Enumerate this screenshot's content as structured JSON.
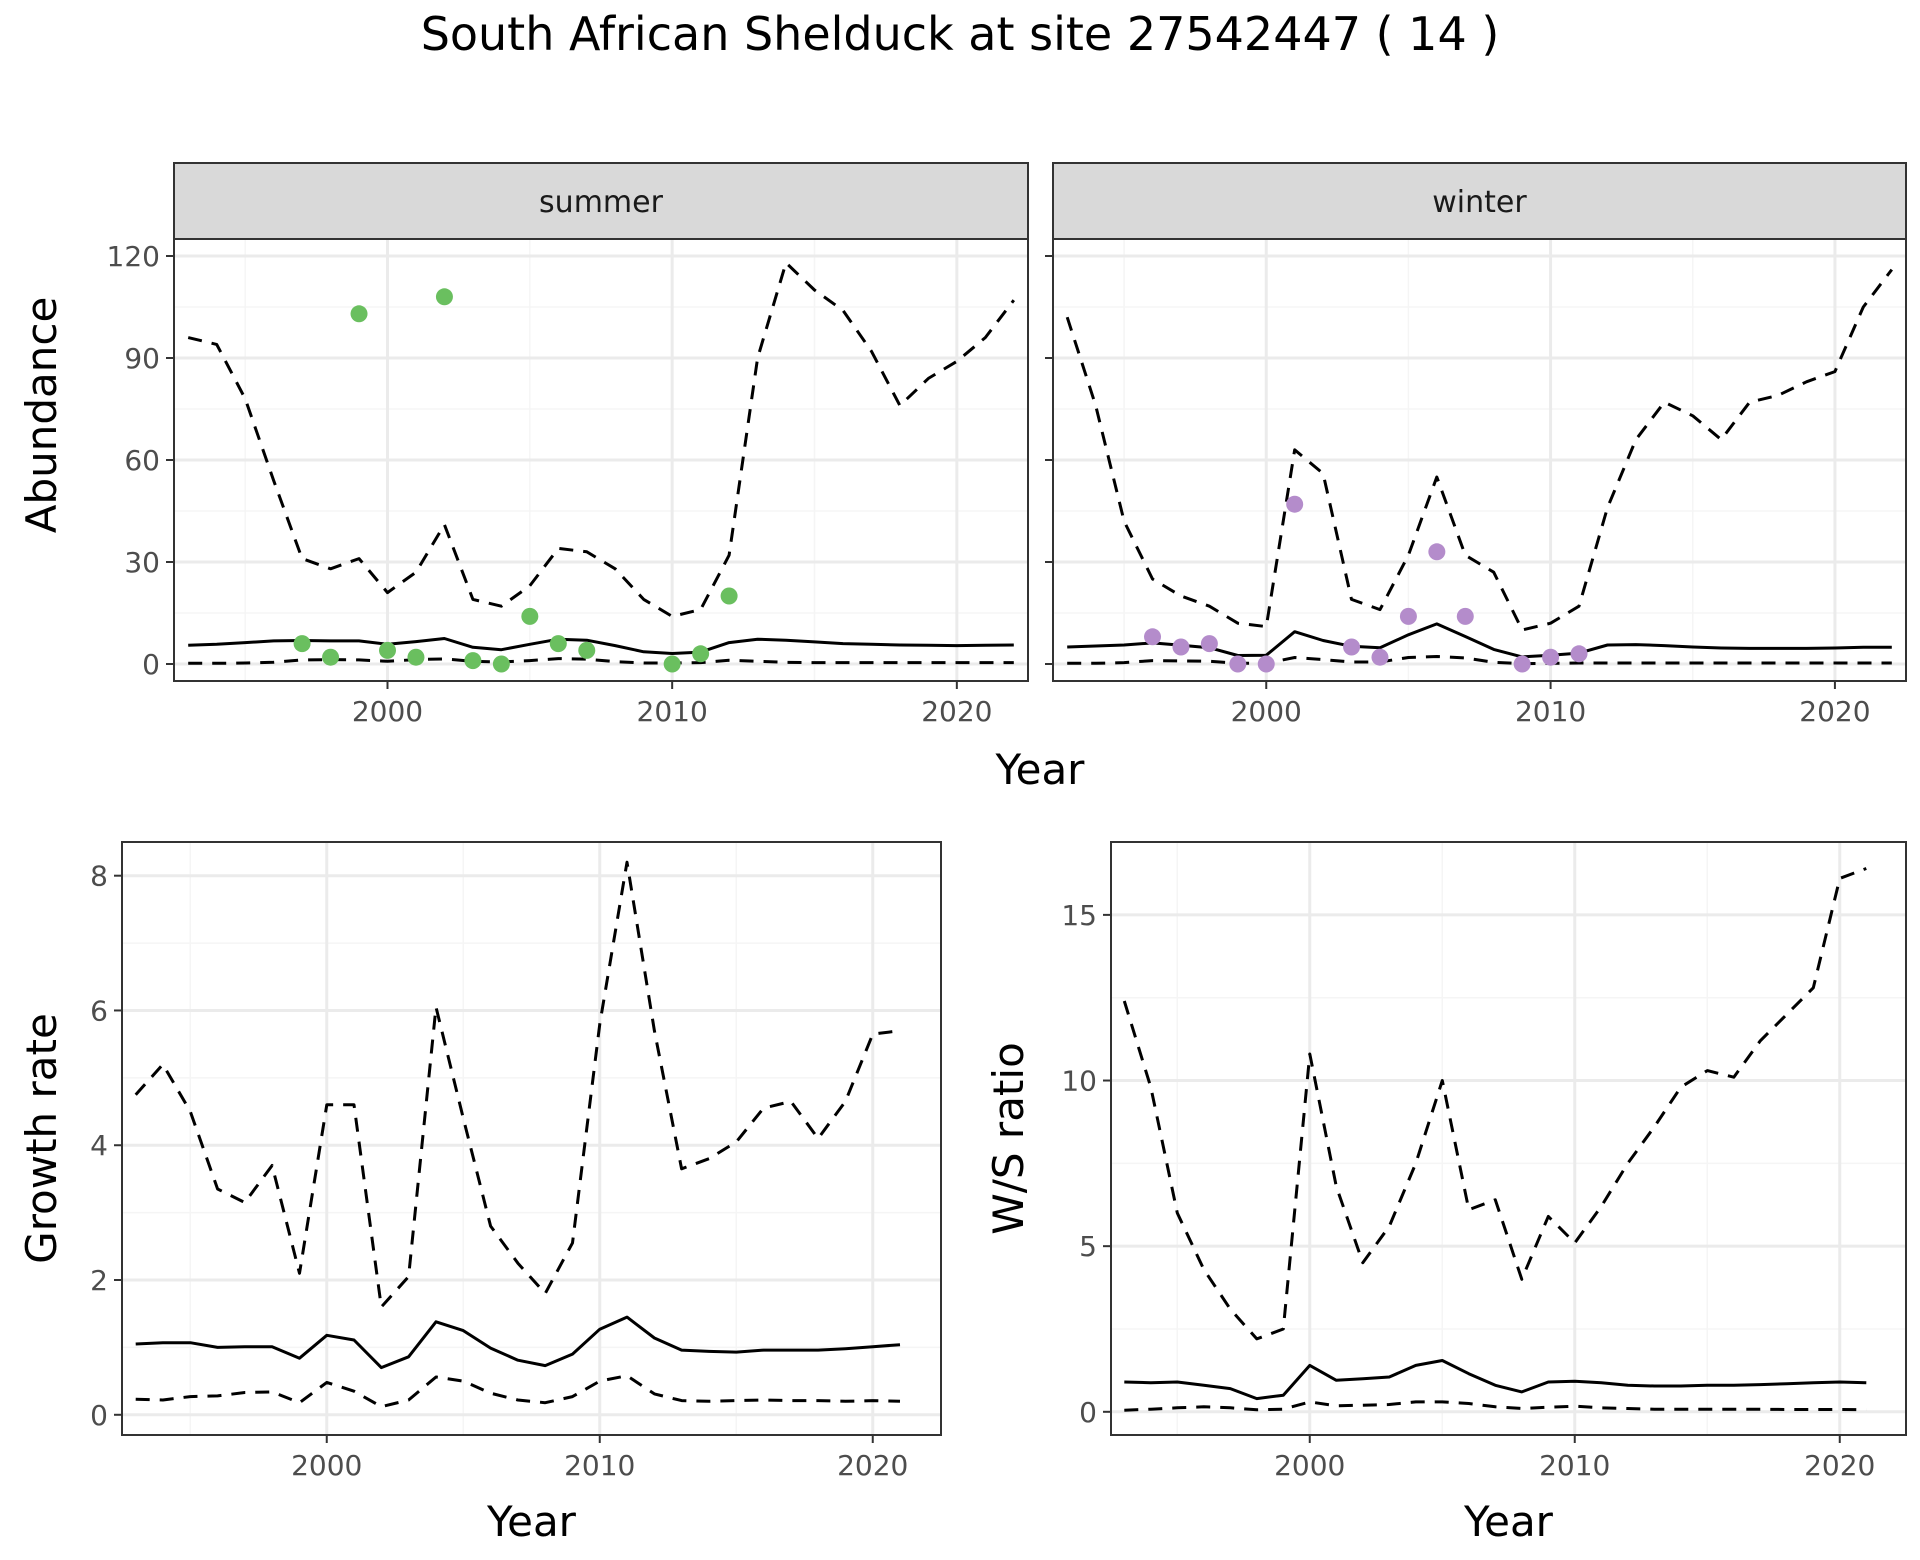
{
  "title": "South African Shelduck at site 27542447 ( 14 )",
  "colors": {
    "summer_points": "#6abf5f",
    "winter_points": "#b48ccb",
    "lines": "#000000",
    "grid_major": "#ebebeb",
    "grid_minor": "#f5f5f5",
    "strip_fill": "#d9d9d9",
    "panel_border": "#333333"
  },
  "chart_data": [
    {
      "type": "scatter",
      "facet": "summer",
      "xlabel": "Year",
      "ylabel": "Abundance",
      "xlim": [
        1992.5,
        2022.5
      ],
      "ylim": [
        -5,
        125
      ],
      "xticks": [
        2000,
        2010,
        2020
      ],
      "yticks": [
        0,
        30,
        60,
        90,
        120
      ],
      "grid": true,
      "points": {
        "x": [
          1997,
          1998,
          1999,
          2000,
          2001,
          2002,
          2003,
          2004,
          2005,
          2006,
          2007,
          2010,
          2011,
          2012
        ],
        "y": [
          6,
          2,
          103,
          4,
          2,
          108,
          1,
          0,
          14,
          6,
          4,
          0,
          3,
          20
        ]
      },
      "lines": [
        {
          "style": "solid",
          "x": [
            1993,
            1994,
            1995,
            1996,
            1997,
            1998,
            1999,
            2000,
            2001,
            2002,
            2003,
            2004,
            2005,
            2006,
            2007,
            2008,
            2009,
            2010,
            2011,
            2012,
            2013,
            2014,
            2015,
            2016,
            2017,
            2018,
            2019,
            2020,
            2021,
            2022
          ],
          "y": [
            5.5,
            5.8,
            6.3,
            6.8,
            6.9,
            6.8,
            6.8,
            5.8,
            6.6,
            7.5,
            4.9,
            4.2,
            5.8,
            7.3,
            7.0,
            5.4,
            3.6,
            3.1,
            3.5,
            6.3,
            7.3,
            7.0,
            6.5,
            6.0,
            5.8,
            5.6,
            5.5,
            5.4,
            5.5,
            5.6
          ]
        },
        {
          "style": "dashed",
          "x": [
            1993,
            1994,
            1995,
            1996,
            1997,
            1998,
            1999,
            2000,
            2001,
            2002,
            2003,
            2004,
            2005,
            2006,
            2007,
            2008,
            2009,
            2010,
            2011,
            2012,
            2013,
            2014,
            2015,
            2016,
            2017,
            2018,
            2019,
            2020,
            2021,
            2022
          ],
          "y": [
            96,
            94,
            78,
            54,
            31,
            28,
            31,
            21,
            27,
            41,
            19,
            17,
            23,
            34,
            33,
            28,
            19,
            14,
            16,
            32,
            90,
            118,
            110,
            104,
            92,
            76,
            84,
            89,
            96,
            107
          ]
        },
        {
          "style": "dashed",
          "x": [
            1993,
            1994,
            1995,
            1996,
            1997,
            1998,
            1999,
            2000,
            2001,
            2002,
            2003,
            2004,
            2005,
            2006,
            2007,
            2008,
            2009,
            2010,
            2011,
            2012,
            2013,
            2014,
            2015,
            2016,
            2017,
            2018,
            2019,
            2020,
            2021,
            2022
          ],
          "y": [
            0.2,
            0.2,
            0.3,
            0.5,
            1.2,
            1.3,
            1.2,
            0.8,
            1.3,
            1.5,
            0.8,
            0.6,
            1.0,
            1.6,
            1.4,
            0.7,
            0.3,
            0.3,
            0.4,
            1.1,
            0.8,
            0.5,
            0.4,
            0.4,
            0.4,
            0.4,
            0.4,
            0.4,
            0.4,
            0.4
          ]
        }
      ]
    },
    {
      "type": "scatter",
      "facet": "winter",
      "xlabel": "Year",
      "ylabel": "Abundance",
      "xlim": [
        1992.5,
        2022.5
      ],
      "ylim": [
        -5,
        125
      ],
      "xticks": [
        2000,
        2010,
        2020
      ],
      "yticks": [
        0,
        30,
        60,
        90,
        120
      ],
      "grid": true,
      "points": {
        "x": [
          1996,
          1997,
          1998,
          1999,
          2000,
          2001,
          2003,
          2004,
          2005,
          2006,
          2007,
          2009,
          2010,
          2011
        ],
        "y": [
          8,
          5,
          6,
          0,
          0,
          47,
          5,
          2,
          14,
          33,
          14,
          0,
          2,
          3
        ]
      },
      "lines": [
        {
          "style": "solid",
          "x": [
            1993,
            1994,
            1995,
            1996,
            1997,
            1998,
            1999,
            2000,
            2001,
            2002,
            2003,
            2004,
            2005,
            2006,
            2007,
            2008,
            2009,
            2010,
            2011,
            2012,
            2013,
            2014,
            2015,
            2016,
            2017,
            2018,
            2019,
            2020,
            2021,
            2022
          ],
          "y": [
            5.0,
            5.3,
            5.6,
            6.2,
            5.5,
            4.8,
            2.5,
            2.6,
            9.5,
            6.9,
            5.2,
            4.8,
            8.6,
            11.8,
            8.1,
            4.3,
            2.1,
            2.6,
            3.2,
            5.6,
            5.7,
            5.4,
            5.0,
            4.7,
            4.6,
            4.6,
            4.6,
            4.7,
            4.9,
            4.9
          ]
        },
        {
          "style": "dashed",
          "x": [
            1993,
            1994,
            1995,
            1996,
            1997,
            1998,
            1999,
            2000,
            2001,
            2002,
            2003,
            2004,
            2005,
            2006,
            2007,
            2008,
            2009,
            2010,
            2011,
            2012,
            2013,
            2014,
            2015,
            2016,
            2017,
            2018,
            2019,
            2020,
            2021,
            2022
          ],
          "y": [
            102,
            76,
            42,
            25,
            20,
            17,
            12,
            11,
            63,
            56,
            19,
            16,
            32,
            55,
            32,
            27,
            10,
            12,
            17,
            46,
            66,
            77,
            73,
            66,
            77,
            79,
            83,
            86,
            105,
            116
          ]
        },
        {
          "style": "dashed",
          "x": [
            1993,
            1994,
            1995,
            1996,
            1997,
            1998,
            1999,
            2000,
            2001,
            2002,
            2003,
            2004,
            2005,
            2006,
            2007,
            2008,
            2009,
            2010,
            2011,
            2012,
            2013,
            2014,
            2015,
            2016,
            2017,
            2018,
            2019,
            2020,
            2021,
            2022
          ],
          "y": [
            0.2,
            0.2,
            0.4,
            1.0,
            0.9,
            0.8,
            0.2,
            0.2,
            1.9,
            1.3,
            0.6,
            0.6,
            1.9,
            2.2,
            1.8,
            0.5,
            0.1,
            0.2,
            0.3,
            0.3,
            0.3,
            0.3,
            0.3,
            0.3,
            0.3,
            0.3,
            0.3,
            0.3,
            0.3,
            0.3
          ]
        }
      ]
    },
    {
      "type": "line",
      "xlabel": "Year",
      "ylabel": "Growth rate",
      "xlim": [
        1992.5,
        2022.5
      ],
      "ylim": [
        -0.3,
        8.5
      ],
      "xticks": [
        2000,
        2010,
        2020
      ],
      "yticks": [
        0,
        2,
        4,
        6,
        8
      ],
      "grid": true,
      "lines": [
        {
          "style": "solid",
          "x": [
            1993,
            1994,
            1995,
            1996,
            1997,
            1998,
            1999,
            2000,
            2001,
            2002,
            2003,
            2004,
            2005,
            2006,
            2007,
            2008,
            2009,
            2010,
            2011,
            2012,
            2013,
            2014,
            2015,
            2016,
            2017,
            2018,
            2019,
            2020,
            2021
          ],
          "y": [
            1.05,
            1.07,
            1.07,
            1.0,
            1.01,
            1.01,
            0.84,
            1.18,
            1.11,
            0.7,
            0.86,
            1.38,
            1.25,
            0.99,
            0.81,
            0.73,
            0.9,
            1.27,
            1.45,
            1.14,
            0.96,
            0.94,
            0.93,
            0.96,
            0.96,
            0.96,
            0.98,
            1.01,
            1.04
          ]
        },
        {
          "style": "dashed",
          "x": [
            1993,
            1994,
            1995,
            1996,
            1997,
            1998,
            1999,
            2000,
            2001,
            2002,
            2003,
            2004,
            2005,
            2006,
            2007,
            2008,
            2009,
            2010,
            2011,
            2012,
            2013,
            2014,
            2015,
            2016,
            2017,
            2018,
            2019,
            2020,
            2021
          ],
          "y": [
            4.75,
            5.2,
            4.5,
            3.35,
            3.15,
            3.7,
            2.1,
            4.6,
            4.6,
            1.6,
            2.05,
            6.05,
            4.4,
            2.8,
            2.25,
            1.8,
            2.55,
            5.8,
            8.2,
            5.7,
            3.65,
            3.8,
            4.05,
            4.55,
            4.65,
            4.1,
            4.65,
            5.65,
            5.7
          ]
        },
        {
          "style": "dashed",
          "x": [
            1993,
            1994,
            1995,
            1996,
            1997,
            1998,
            1999,
            2000,
            2001,
            2002,
            2003,
            2004,
            2005,
            2006,
            2007,
            2008,
            2009,
            2010,
            2011,
            2012,
            2013,
            2014,
            2015,
            2016,
            2017,
            2018,
            2019,
            2020,
            2021
          ],
          "y": [
            0.23,
            0.22,
            0.27,
            0.28,
            0.33,
            0.34,
            0.18,
            0.48,
            0.35,
            0.12,
            0.22,
            0.56,
            0.5,
            0.32,
            0.22,
            0.18,
            0.27,
            0.5,
            0.58,
            0.31,
            0.21,
            0.2,
            0.21,
            0.22,
            0.21,
            0.21,
            0.2,
            0.21,
            0.2
          ]
        }
      ]
    },
    {
      "type": "line",
      "xlabel": "Year",
      "ylabel": "W/S ratio",
      "xlim": [
        1992.5,
        2022.5
      ],
      "ylim": [
        -0.7,
        17.2
      ],
      "xticks": [
        2000,
        2010,
        2020
      ],
      "yticks": [
        0,
        5,
        10,
        15
      ],
      "grid": true,
      "lines": [
        {
          "style": "solid",
          "x": [
            1993,
            1994,
            1995,
            1996,
            1997,
            1998,
            1999,
            2000,
            2001,
            2002,
            2003,
            2004,
            2005,
            2006,
            2007,
            2008,
            2009,
            2010,
            2011,
            2012,
            2013,
            2014,
            2015,
            2016,
            2017,
            2018,
            2019,
            2020,
            2021
          ],
          "y": [
            0.9,
            0.88,
            0.9,
            0.8,
            0.7,
            0.4,
            0.5,
            1.4,
            0.95,
            1.0,
            1.05,
            1.4,
            1.55,
            1.15,
            0.8,
            0.6,
            0.9,
            0.92,
            0.88,
            0.8,
            0.78,
            0.78,
            0.8,
            0.8,
            0.82,
            0.85,
            0.88,
            0.9,
            0.88
          ]
        },
        {
          "style": "dashed",
          "x": [
            1993,
            1994,
            1995,
            1996,
            1997,
            1998,
            1999,
            2000,
            2001,
            2002,
            2003,
            2004,
            2005,
            2006,
            2007,
            2008,
            2009,
            2010,
            2011,
            2012,
            2013,
            2014,
            2015,
            2016,
            2017,
            2018,
            2019,
            2020,
            2021
          ],
          "y": [
            12.4,
            9.8,
            6.0,
            4.3,
            3.1,
            2.2,
            2.5,
            10.8,
            6.8,
            4.5,
            5.6,
            7.5,
            10.0,
            6.1,
            6.4,
            4.0,
            5.9,
            5.1,
            6.2,
            7.5,
            8.6,
            9.8,
            10.3,
            10.1,
            11.2,
            12.0,
            12.8,
            16.1,
            16.4
          ]
        },
        {
          "style": "dashed",
          "x": [
            1993,
            1994,
            1995,
            1996,
            1997,
            1998,
            1999,
            2000,
            2001,
            2002,
            2003,
            2004,
            2005,
            2006,
            2007,
            2008,
            2009,
            2010,
            2011,
            2012,
            2013,
            2014,
            2015,
            2016,
            2017,
            2018,
            2019,
            2020,
            2021
          ],
          "y": [
            0.05,
            0.08,
            0.12,
            0.15,
            0.12,
            0.06,
            0.08,
            0.3,
            0.18,
            0.2,
            0.22,
            0.3,
            0.3,
            0.25,
            0.15,
            0.1,
            0.14,
            0.17,
            0.12,
            0.1,
            0.08,
            0.08,
            0.08,
            0.08,
            0.08,
            0.07,
            0.07,
            0.07,
            0.06
          ]
        }
      ]
    }
  ]
}
